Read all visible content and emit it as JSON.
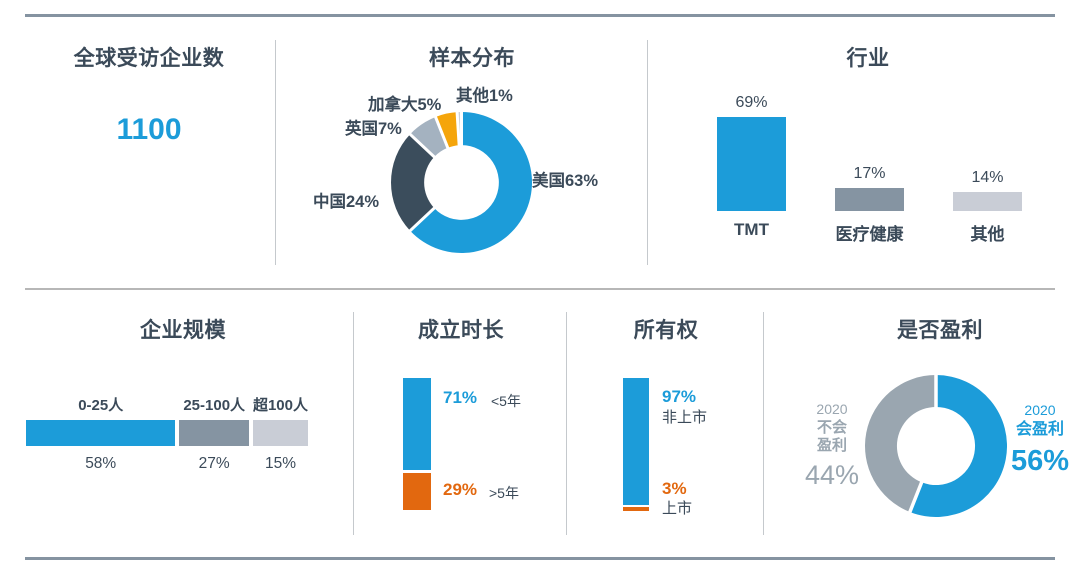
{
  "colors": {
    "blue": "#1C9CD9",
    "dark_slate": "#3B4D5C",
    "gray_blue": "#A4B2C0",
    "amber": "#F5A50B",
    "pale_gray": "#CCD1D7",
    "mid_gray": "#8594A2",
    "light_gray": "#C9CDD6",
    "orange": "#E2680F",
    "profit_gray": "#9AA6B0",
    "title_text": "#3B4A59",
    "rule_dark": "#8593A1",
    "rule_light": "#B7B7B7"
  },
  "panels": {
    "total": {
      "title": "全球受访企业数",
      "value": "1100"
    }
  },
  "chart_data": [
    {
      "type": "pie",
      "subtype": "donut",
      "title": "样本分布",
      "categories": [
        "美国",
        "中国",
        "英国",
        "加拿大",
        "其他"
      ],
      "values": [
        63,
        24,
        7,
        5,
        1
      ],
      "data_labels": [
        "美国63%",
        "中国24%",
        "英国7%",
        "加拿大5%",
        "其他1%"
      ],
      "colors": [
        "#1C9CD9",
        "#3B4D5C",
        "#A4B2C0",
        "#F5A50B",
        "#CCD1D7"
      ],
      "start_angle_deg": 0,
      "direction": "clockwise",
      "hole": 0.53,
      "legend": "labels-around-chart"
    },
    {
      "type": "bar",
      "title": "行业",
      "categories": [
        "TMT",
        "医疗健康",
        "其他"
      ],
      "values": [
        69,
        17,
        14
      ],
      "data_labels": [
        "69%",
        "17%",
        "14%"
      ],
      "colors": [
        "#1C9CD9",
        "#8594A2",
        "#C9CDD6"
      ],
      "ylim": [
        0,
        100
      ],
      "grid": false,
      "value_labels_position": "above-bars"
    },
    {
      "type": "bar",
      "subtype": "stacked-horizontal",
      "title": "企业规模",
      "categories": [
        "0-25人",
        "25-100人",
        "超100人"
      ],
      "values": [
        58,
        27,
        15
      ],
      "data_labels": [
        "58%",
        "27%",
        "15%"
      ],
      "colors": [
        "#1C9CD9",
        "#8594A2",
        "#C9CDD6"
      ]
    },
    {
      "type": "bar",
      "subtype": "stacked-vertical",
      "title": "成立时长",
      "categories": [
        "<5年",
        ">5年"
      ],
      "values": [
        71,
        29
      ],
      "data_labels": [
        "71%",
        "29%"
      ],
      "colors": [
        "#1C9CD9",
        "#E2680F"
      ],
      "label_colors": [
        "#1C9CD9",
        "#E2680F"
      ]
    },
    {
      "type": "bar",
      "subtype": "stacked-vertical",
      "title": "所有权",
      "categories": [
        "非上市",
        "上市"
      ],
      "values": [
        97,
        3
      ],
      "data_labels": [
        "97%",
        "3%"
      ],
      "colors": [
        "#1C9CD9",
        "#E2680F"
      ],
      "label_colors": [
        "#1C9CD9",
        "#E2680F"
      ]
    },
    {
      "type": "pie",
      "subtype": "donut",
      "title": "是否盈利",
      "categories": [
        "2020 会盈利",
        "2020 不会盈利"
      ],
      "values": [
        56,
        44
      ],
      "data_labels": [
        "56%",
        "44%"
      ],
      "colors": [
        "#1C9CD9",
        "#9AA6B0"
      ],
      "start_angle_deg": 0,
      "direction": "clockwise",
      "hole": 0.55,
      "annotations": {
        "left": [
          "2020",
          "不会",
          "盈利",
          "44%"
        ],
        "right": [
          "2020",
          "会盈利",
          "56%"
        ]
      }
    }
  ]
}
